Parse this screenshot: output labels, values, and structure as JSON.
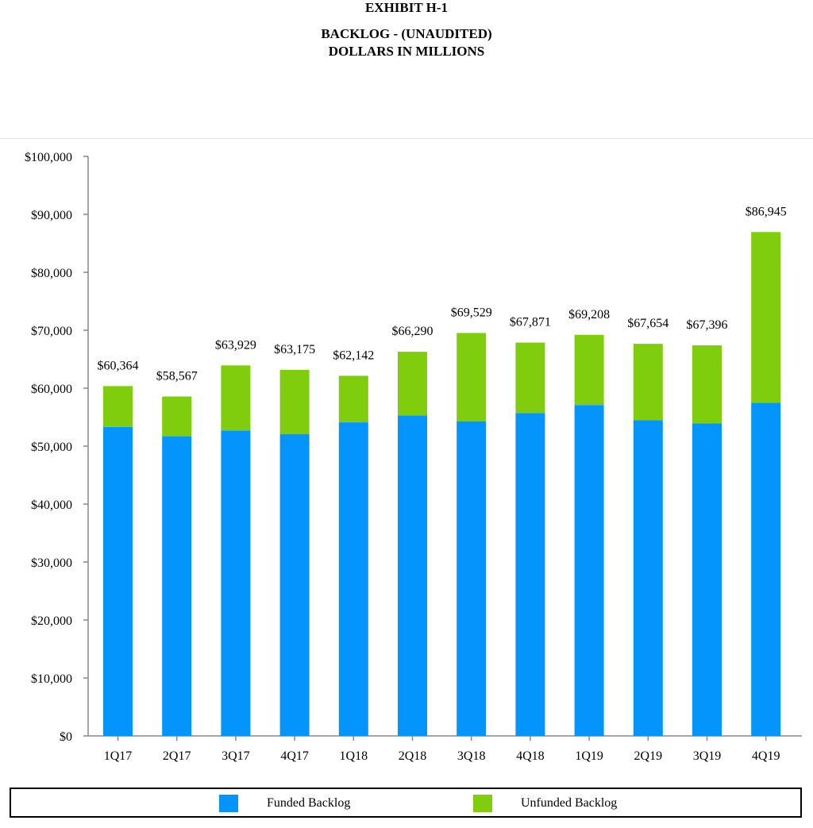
{
  "header": {
    "exhibit": "EXHIBIT H-1",
    "title": "BACKLOG - (UNAUDITED)",
    "subtitle": "DOLLARS IN MILLIONS"
  },
  "colors": {
    "funded": "#0394fc",
    "unfunded": "#7fcd0c",
    "axis": "#888888"
  },
  "chart_data": {
    "type": "bar",
    "stacked": true,
    "categories": [
      "1Q17",
      "2Q17",
      "3Q17",
      "4Q17",
      "1Q18",
      "2Q18",
      "3Q18",
      "4Q18",
      "1Q19",
      "2Q19",
      "3Q19",
      "4Q19"
    ],
    "series": [
      {
        "name": "Funded Backlog",
        "values": [
          53300,
          51700,
          52700,
          52100,
          54100,
          55300,
          54300,
          55700,
          57100,
          54500,
          53900,
          57500
        ]
      },
      {
        "name": "Unfunded Backlog",
        "values": [
          7064,
          6867,
          11229,
          11075,
          8042,
          10990,
          15229,
          12171,
          12108,
          13154,
          13496,
          29445
        ]
      }
    ],
    "totals": [
      "$60,364",
      "$58,567",
      "$63,929",
      "$63,175",
      "$62,142",
      "$66,290",
      "$69,529",
      "$67,871",
      "$69,208",
      "$67,654",
      "$67,396",
      "$86,945"
    ],
    "total_values": [
      60364,
      58567,
      63929,
      63175,
      62142,
      66290,
      69529,
      67871,
      69208,
      67654,
      67396,
      86945
    ],
    "ylim": [
      0,
      100000
    ],
    "yticks": [
      0,
      10000,
      20000,
      30000,
      40000,
      50000,
      60000,
      70000,
      80000,
      90000,
      100000
    ],
    "ytick_labels": [
      "$0",
      "$10,000",
      "$20,000",
      "$30,000",
      "$40,000",
      "$50,000",
      "$60,000",
      "$70,000",
      "$80,000",
      "$90,000",
      "$100,000"
    ],
    "legend_position": "bottom",
    "grid": false
  },
  "legend": {
    "funded_label": "Funded Backlog",
    "unfunded_label": "Unfunded Backlog"
  }
}
